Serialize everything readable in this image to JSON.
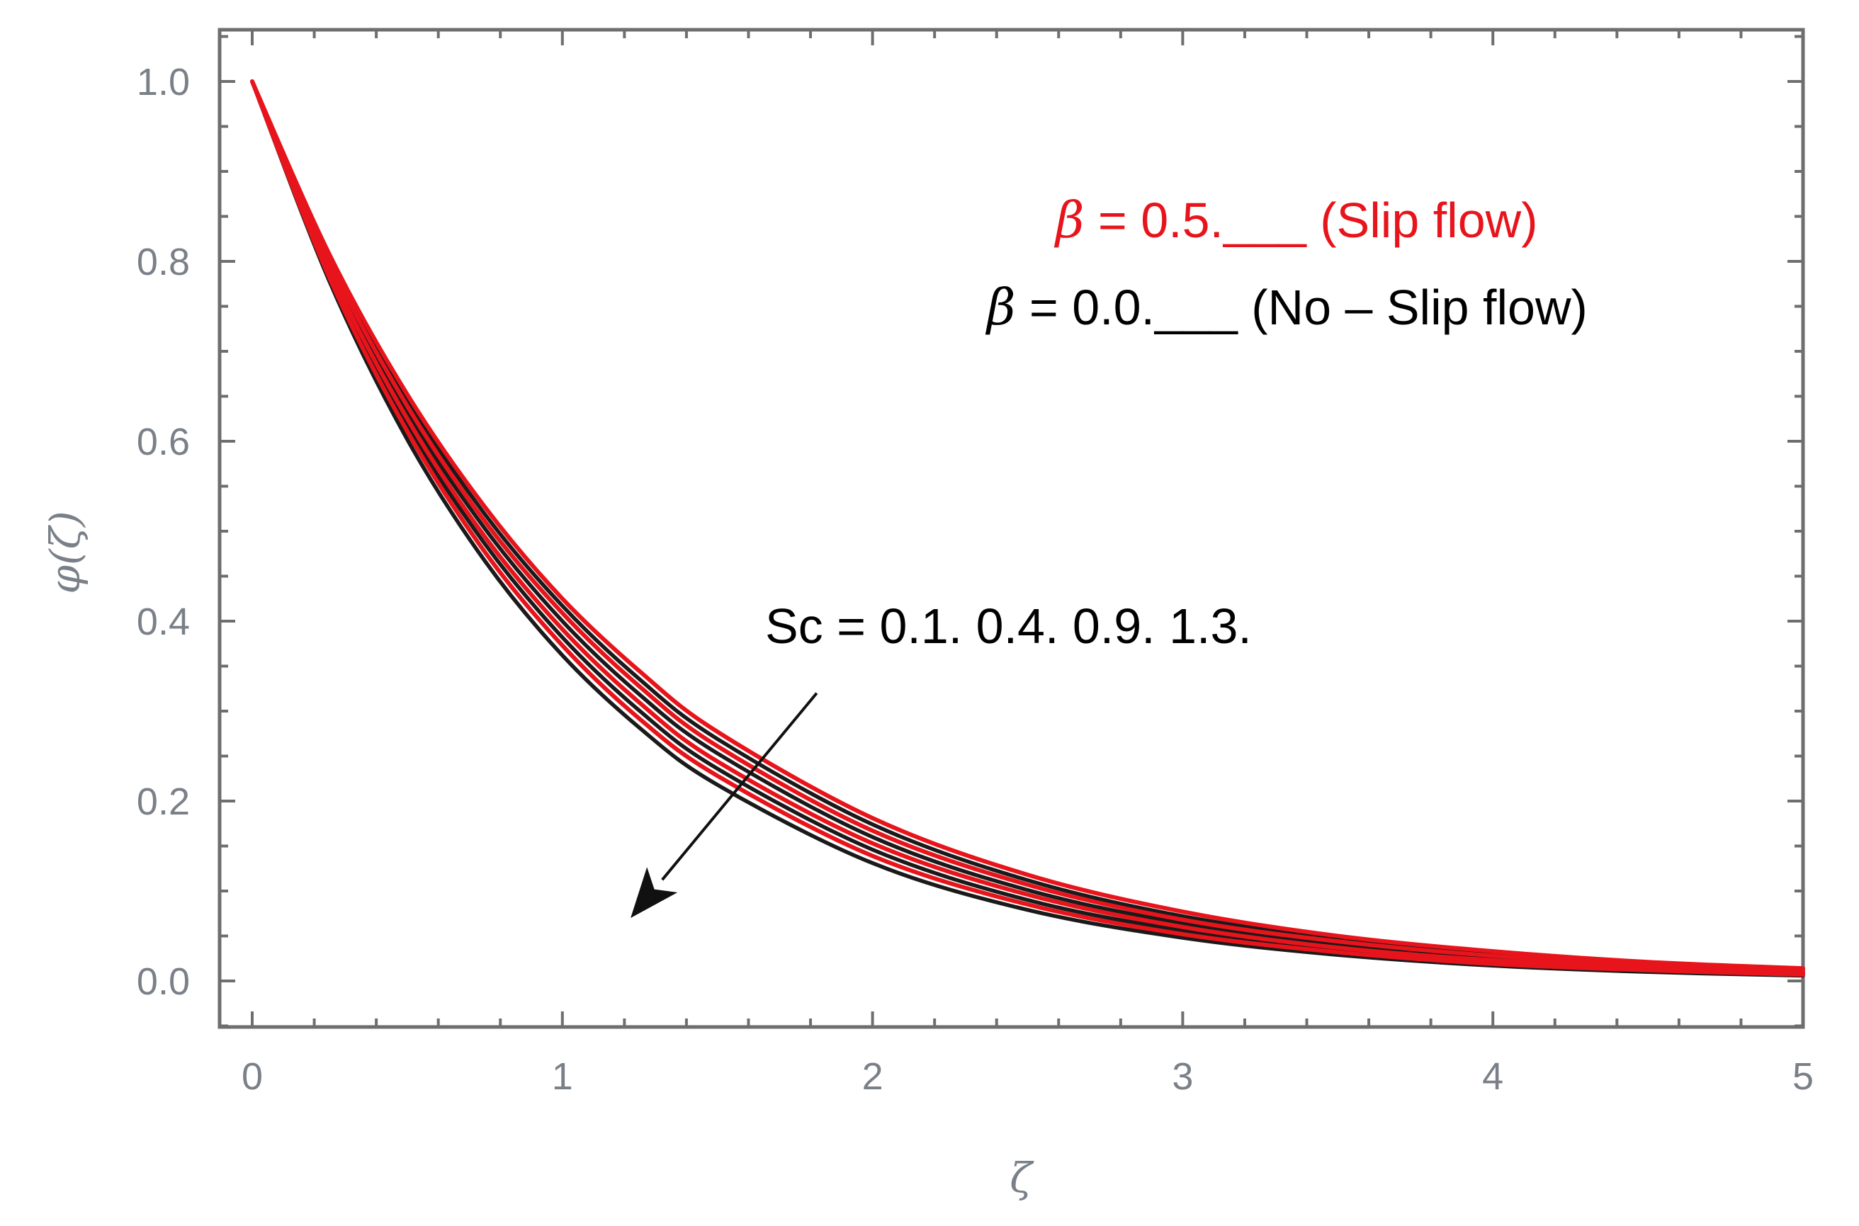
{
  "chart_data": {
    "type": "line",
    "xlabel": "ζ",
    "ylabel": "φ(ζ)",
    "xlim": [
      0,
      5
    ],
    "ylim": [
      -0.05,
      1.05
    ],
    "xticks": [
      0,
      1,
      2,
      3,
      4,
      5
    ],
    "xtick_labels": [
      "0",
      "1",
      "2",
      "3",
      "4",
      "5"
    ],
    "yticks": [
      0.0,
      0.2,
      0.4,
      0.6,
      0.8,
      1.0
    ],
    "ytick_labels": [
      "0.0",
      "0.2",
      "0.4",
      "0.6",
      "0.8",
      "1.0"
    ],
    "grid": false,
    "frame": true,
    "annotations": {
      "slip": {
        "symbol": "β",
        "text": " = 0.5.___ (Slip flow)",
        "color": "#e8141c"
      },
      "noslip": {
        "symbol": "β",
        "text": " = 0.0.___ (No – Slip flow)",
        "color": "#000000"
      },
      "sc": {
        "text": "Sc = 0.1. 0.4. 0.9. 1.3.",
        "color": "#000000",
        "arrow_from": [
          1.82,
          0.32
        ],
        "arrow_to": [
          1.22,
          0.07
        ]
      }
    },
    "series": [
      {
        "group": "β = 0.0",
        "color": "#1a1a1a",
        "x": [
          0,
          0.25,
          0.5,
          0.75,
          1.0,
          1.25,
          1.5,
          2.0,
          2.5,
          3.0,
          3.5,
          4.0,
          4.5,
          5.0
        ],
        "y": [
          1.0,
          0.777,
          0.602,
          0.467,
          0.362,
          0.281,
          0.218,
          0.131,
          0.079,
          0.048,
          0.029,
          0.017,
          0.01,
          0.006
        ]
      },
      {
        "group": "β = 0.0",
        "color": "#1a1a1a",
        "x": [
          0,
          0.25,
          0.5,
          0.75,
          1.0,
          1.25,
          1.5,
          2.0,
          2.5,
          3.0,
          3.5,
          4.0,
          4.5,
          5.0
        ],
        "y": [
          1.0,
          0.786,
          0.618,
          0.486,
          0.382,
          0.3,
          0.236,
          0.146,
          0.09,
          0.056,
          0.034,
          0.021,
          0.013,
          0.008
        ]
      },
      {
        "group": "β = 0.0",
        "color": "#1a1a1a",
        "x": [
          0,
          0.25,
          0.5,
          0.75,
          1.0,
          1.25,
          1.5,
          2.0,
          2.5,
          3.0,
          3.5,
          4.0,
          4.5,
          5.0
        ],
        "y": [
          1.0,
          0.795,
          0.632,
          0.503,
          0.4,
          0.318,
          0.253,
          0.16,
          0.101,
          0.064,
          0.04,
          0.026,
          0.016,
          0.01
        ]
      },
      {
        "group": "β = 0.0",
        "color": "#1a1a1a",
        "x": [
          0,
          0.25,
          0.5,
          0.75,
          1.0,
          1.25,
          1.5,
          2.0,
          2.5,
          3.0,
          3.5,
          4.0,
          4.5,
          5.0
        ],
        "y": [
          1.0,
          0.803,
          0.646,
          0.519,
          0.417,
          0.335,
          0.269,
          0.174,
          0.112,
          0.072,
          0.047,
          0.03,
          0.019,
          0.013
        ]
      },
      {
        "group": "β = 0.5",
        "color": "#e8141c",
        "x": [
          0,
          0.25,
          0.5,
          0.75,
          1.0,
          1.25,
          1.5,
          2.0,
          2.5,
          3.0,
          3.5,
          4.0,
          4.5,
          5.0
        ],
        "y": [
          1.0,
          0.781,
          0.611,
          0.477,
          0.373,
          0.291,
          0.228,
          0.139,
          0.085,
          0.052,
          0.032,
          0.019,
          0.012,
          0.007
        ]
      },
      {
        "group": "β = 0.5",
        "color": "#e8141c",
        "x": [
          0,
          0.25,
          0.5,
          0.75,
          1.0,
          1.25,
          1.5,
          2.0,
          2.5,
          3.0,
          3.5,
          4.0,
          4.5,
          5.0
        ],
        "y": [
          1.0,
          0.79,
          0.625,
          0.494,
          0.391,
          0.309,
          0.244,
          0.153,
          0.096,
          0.06,
          0.037,
          0.023,
          0.015,
          0.009
        ]
      },
      {
        "group": "β = 0.5",
        "color": "#e8141c",
        "x": [
          0,
          0.25,
          0.5,
          0.75,
          1.0,
          1.25,
          1.5,
          2.0,
          2.5,
          3.0,
          3.5,
          4.0,
          4.5,
          5.0
        ],
        "y": [
          1.0,
          0.799,
          0.639,
          0.511,
          0.409,
          0.327,
          0.261,
          0.167,
          0.107,
          0.068,
          0.044,
          0.028,
          0.018,
          0.011
        ]
      },
      {
        "group": "β = 0.5",
        "color": "#e8141c",
        "x": [
          0,
          0.25,
          0.5,
          0.75,
          1.0,
          1.25,
          1.5,
          2.0,
          2.5,
          3.0,
          3.5,
          4.0,
          4.5,
          5.0
        ],
        "y": [
          1.0,
          0.807,
          0.652,
          0.527,
          0.425,
          0.344,
          0.277,
          0.181,
          0.118,
          0.077,
          0.05,
          0.033,
          0.021,
          0.014
        ]
      }
    ]
  }
}
